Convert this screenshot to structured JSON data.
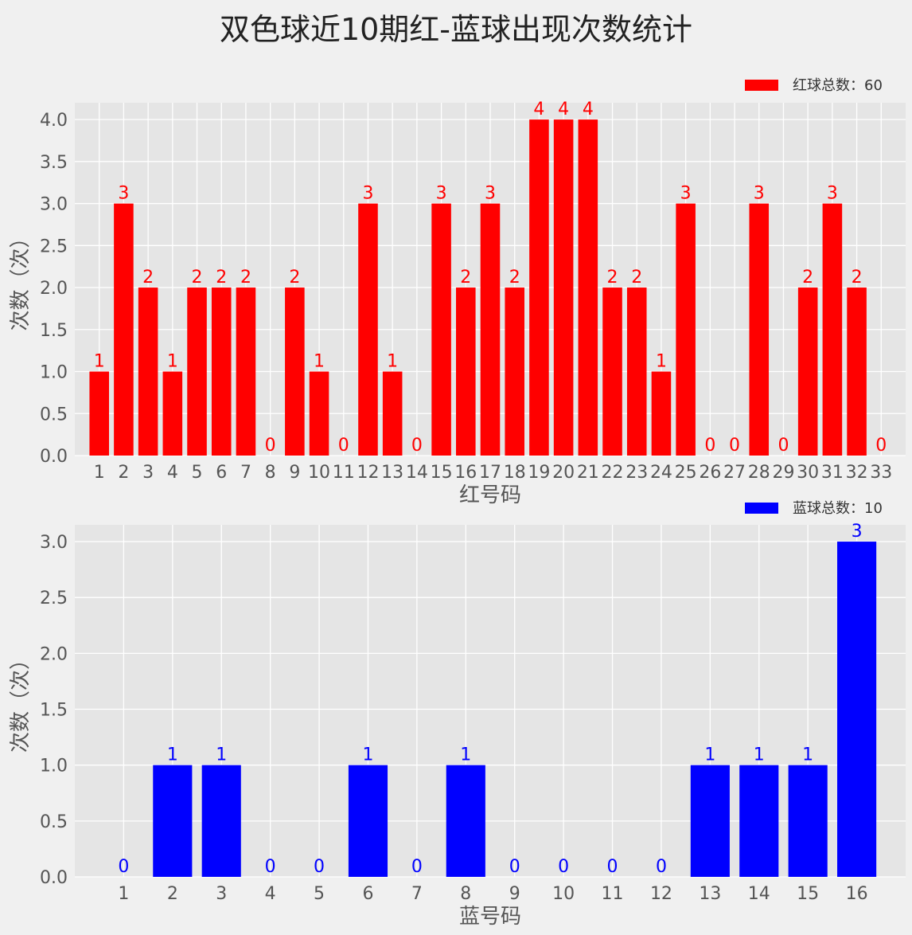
{
  "title": "双色球近10期红-蓝球出现次数统计",
  "colors": {
    "background": "#f0f0f0",
    "plot_bg": "#e5e5e5",
    "grid": "#ffffff",
    "red": "#ff0000",
    "blue": "#0000ff"
  },
  "chart_data": [
    {
      "type": "bar",
      "xlabel": "红号码",
      "ylabel": "次数（次）",
      "legend": "红球总数：60",
      "legend_position": "top-right",
      "color": "#ff0000",
      "grid": true,
      "categories": [
        "1",
        "2",
        "3",
        "4",
        "5",
        "6",
        "7",
        "8",
        "9",
        "10",
        "11",
        "12",
        "13",
        "14",
        "15",
        "16",
        "17",
        "18",
        "19",
        "20",
        "21",
        "22",
        "23",
        "24",
        "25",
        "26",
        "27",
        "28",
        "29",
        "30",
        "31",
        "32",
        "33"
      ],
      "values": [
        1,
        3,
        2,
        1,
        2,
        2,
        2,
        0,
        2,
        1,
        0,
        3,
        1,
        0,
        3,
        2,
        3,
        2,
        4,
        4,
        4,
        2,
        2,
        1,
        3,
        0,
        0,
        3,
        0,
        2,
        3,
        2,
        0
      ],
      "yticks": [
        "0.0",
        "0.5",
        "1.0",
        "1.5",
        "2.0",
        "2.5",
        "3.0",
        "3.5",
        "4.0"
      ],
      "ylim": [
        0,
        4.2
      ]
    },
    {
      "type": "bar",
      "xlabel": "蓝号码",
      "ylabel": "次数（次）",
      "legend": "蓝球总数：10",
      "legend_position": "top-right",
      "color": "#0000ff",
      "grid": true,
      "categories": [
        "1",
        "2",
        "3",
        "4",
        "5",
        "6",
        "7",
        "8",
        "9",
        "10",
        "11",
        "12",
        "13",
        "14",
        "15",
        "16"
      ],
      "values": [
        0,
        1,
        1,
        0,
        0,
        1,
        0,
        1,
        0,
        0,
        0,
        0,
        1,
        1,
        1,
        3
      ],
      "yticks": [
        "0.0",
        "0.5",
        "1.0",
        "1.5",
        "2.0",
        "2.5",
        "3.0"
      ],
      "ylim": [
        0,
        3.15
      ]
    }
  ]
}
